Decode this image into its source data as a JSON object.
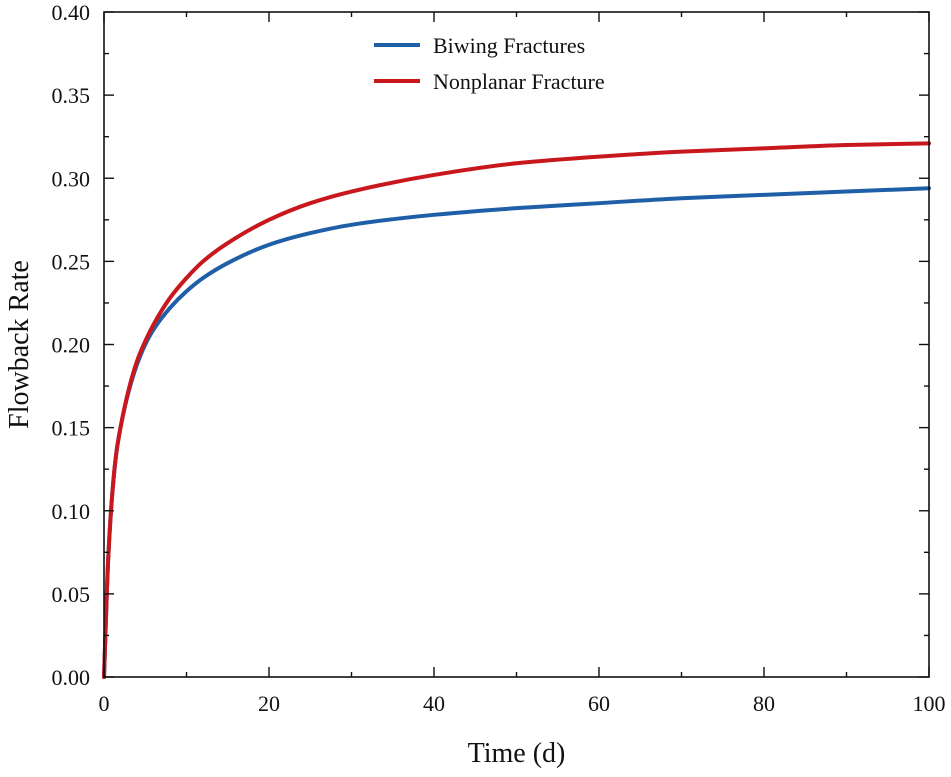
{
  "chart_data": {
    "type": "line",
    "title": "",
    "xlabel": "Time (d)",
    "ylabel": "Flowback Rate",
    "xlim": [
      0,
      100
    ],
    "ylim": [
      0,
      0.4
    ],
    "x_ticks": [
      0,
      20,
      40,
      60,
      80,
      100
    ],
    "x_tick_labels": [
      "0",
      "20",
      "40",
      "60",
      "80",
      "100"
    ],
    "y_ticks": [
      0,
      0.05,
      0.1,
      0.15,
      0.2,
      0.25,
      0.3,
      0.35,
      0.4
    ],
    "y_tick_labels": [
      "0.00",
      "0.05",
      "0.10",
      "0.15",
      "0.20",
      "0.25",
      "0.30",
      "0.35",
      "0.40"
    ],
    "grid": false,
    "legend_position": "top-center",
    "series": [
      {
        "name": "Biwing Fractures",
        "color": "#1f5fa8",
        "x": [
          0,
          0.5,
          1,
          1.5,
          2,
          3,
          4,
          5,
          6,
          8,
          10,
          12,
          15,
          20,
          25,
          30,
          40,
          50,
          60,
          70,
          80,
          90,
          100
        ],
        "y": [
          0,
          0.07,
          0.11,
          0.135,
          0.15,
          0.172,
          0.188,
          0.2,
          0.209,
          0.222,
          0.232,
          0.24,
          0.249,
          0.26,
          0.267,
          0.272,
          0.278,
          0.282,
          0.285,
          0.288,
          0.29,
          0.292,
          0.294
        ]
      },
      {
        "name": "Nonplanar Fracture",
        "color": "#c8181e",
        "x": [
          0,
          0.5,
          1,
          1.5,
          2,
          3,
          4,
          5,
          6,
          8,
          10,
          12,
          15,
          20,
          25,
          30,
          40,
          50,
          60,
          70,
          80,
          90,
          100
        ],
        "y": [
          0,
          0.07,
          0.11,
          0.135,
          0.15,
          0.173,
          0.19,
          0.202,
          0.212,
          0.228,
          0.24,
          0.25,
          0.261,
          0.275,
          0.285,
          0.292,
          0.302,
          0.309,
          0.313,
          0.316,
          0.318,
          0.32,
          0.321
        ]
      }
    ]
  }
}
